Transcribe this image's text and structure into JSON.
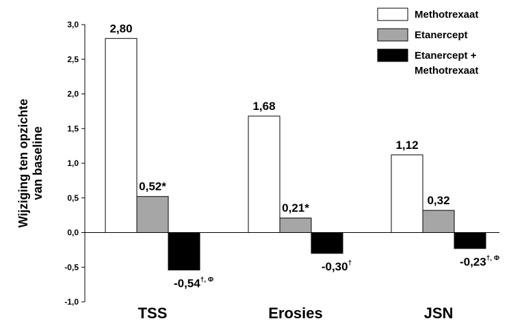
{
  "chart_data": {
    "type": "bar",
    "ylabel_lines": [
      "Wijziging ten opzichte",
      "van baseline"
    ],
    "ylim": [
      -1.0,
      3.0
    ],
    "yticks": [
      {
        "value": -1.0,
        "label": "-1,0"
      },
      {
        "value": -0.5,
        "label": "-0,5"
      },
      {
        "value": 0.0,
        "label": "0,0"
      },
      {
        "value": 0.5,
        "label": "0,5"
      },
      {
        "value": 1.0,
        "label": "1,0"
      },
      {
        "value": 1.5,
        "label": "1,5"
      },
      {
        "value": 2.0,
        "label": "2,0"
      },
      {
        "value": 2.5,
        "label": "2,5"
      },
      {
        "value": 3.0,
        "label": "3,0"
      }
    ],
    "grid": false,
    "legend_position": "top-right",
    "categories": [
      "TSS",
      "Erosies",
      "JSN"
    ],
    "series": [
      {
        "name": "Methotrexaat",
        "legend_lines": [
          "Methotrexaat"
        ],
        "color": "#ffffff",
        "values": [
          2.8,
          1.68,
          1.12
        ],
        "labels": [
          {
            "main": "2,80",
            "sup": ""
          },
          {
            "main": "1,68",
            "sup": ""
          },
          {
            "main": "1,12",
            "sup": ""
          }
        ]
      },
      {
        "name": "Etanercept",
        "legend_lines": [
          "Etanercept"
        ],
        "color": "#a6a6a6",
        "values": [
          0.52,
          0.21,
          0.32
        ],
        "labels": [
          {
            "main": "0,52*",
            "sup": ""
          },
          {
            "main": "0,21*",
            "sup": ""
          },
          {
            "main": "0,32",
            "sup": ""
          }
        ]
      },
      {
        "name": "Etanercept + Methotrexaat",
        "legend_lines": [
          "Etanercept +",
          "Methotrexaat"
        ],
        "color": "#000000",
        "values": [
          -0.54,
          -0.3,
          -0.23
        ],
        "labels": [
          {
            "main": "-0,54",
            "sup": "†, Φ"
          },
          {
            "main": "-0,30",
            "sup": "†"
          },
          {
            "main": "-0,23",
            "sup": "†, Φ"
          }
        ]
      }
    ]
  }
}
